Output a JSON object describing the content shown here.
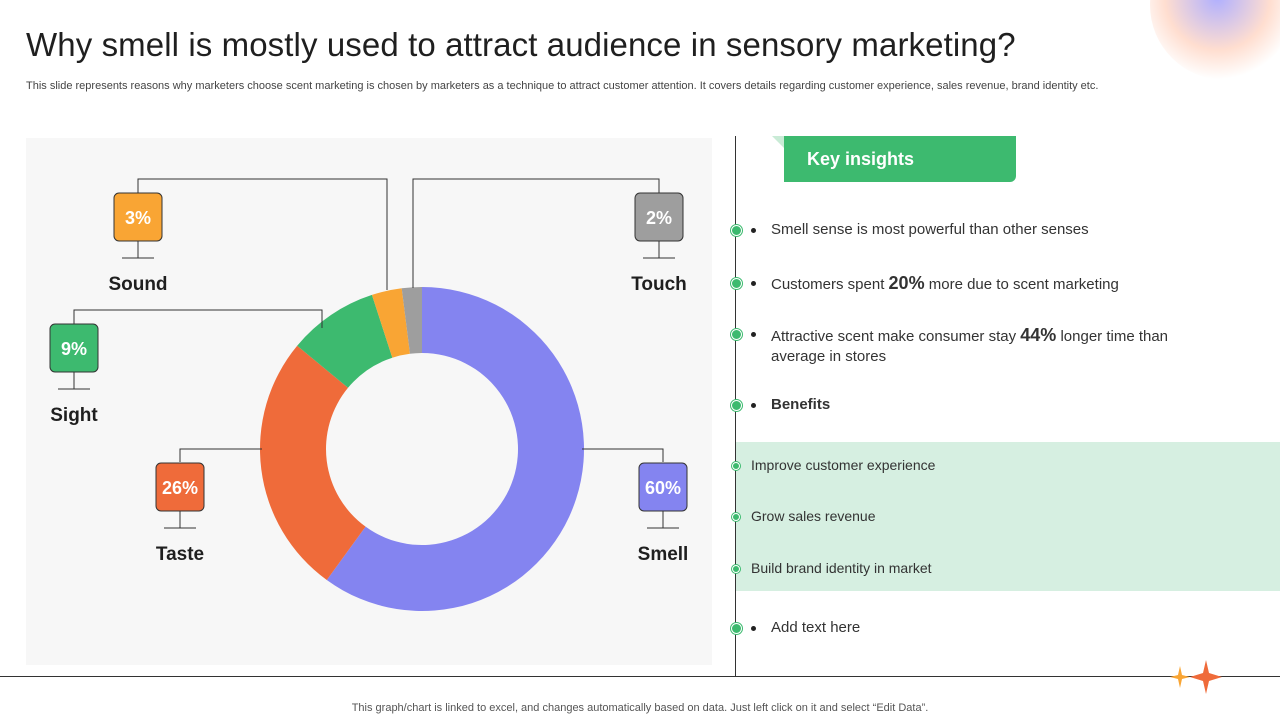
{
  "title": "Why smell is mostly used to attract audience in sensory marketing?",
  "subtitle": "This slide represents reasons why marketers choose scent marketing is chosen by marketers as a technique to attract customer attention. It covers details regarding customer experience, sales revenue, brand identity etc.",
  "chart_data": {
    "type": "pie",
    "variant": "donut",
    "series": [
      {
        "name": "Smell",
        "value": 60,
        "label": "60%",
        "color": "#8484f0"
      },
      {
        "name": "Taste",
        "value": 26,
        "label": "26%",
        "color": "#ef6b3a"
      },
      {
        "name": "Sight",
        "value": 9,
        "label": "9%",
        "color": "#3dba6f"
      },
      {
        "name": "Sound",
        "value": 3,
        "label": "3%",
        "color": "#f9a534"
      },
      {
        "name": "Touch",
        "value": 2,
        "label": "2%",
        "color": "#9e9e9e"
      }
    ],
    "legend": "callout labels around chart"
  },
  "insights": {
    "heading": "Key insights",
    "items": [
      {
        "text": "Smell sense is most powerful than other senses"
      },
      {
        "pre": "Customers spent ",
        "highlight": "20%",
        "post": " more due to scent marketing"
      },
      {
        "pre": "Attractive scent make consumer stay ",
        "highlight": "44%",
        "post": " longer time than average in stores"
      }
    ],
    "benefits_label": "Benefits",
    "benefits": [
      "Improve customer experience",
      "Grow sales revenue",
      "Build brand identity in market"
    ],
    "add_text": "Add text here"
  },
  "footnote": "This graph/chart is linked to excel,  and changes automatically based on data. Just left click on it and select “Edit Data”.",
  "colors": {
    "accent": "#3dba6f",
    "band": "#d6efe1",
    "panel": "#f7f7f7"
  }
}
